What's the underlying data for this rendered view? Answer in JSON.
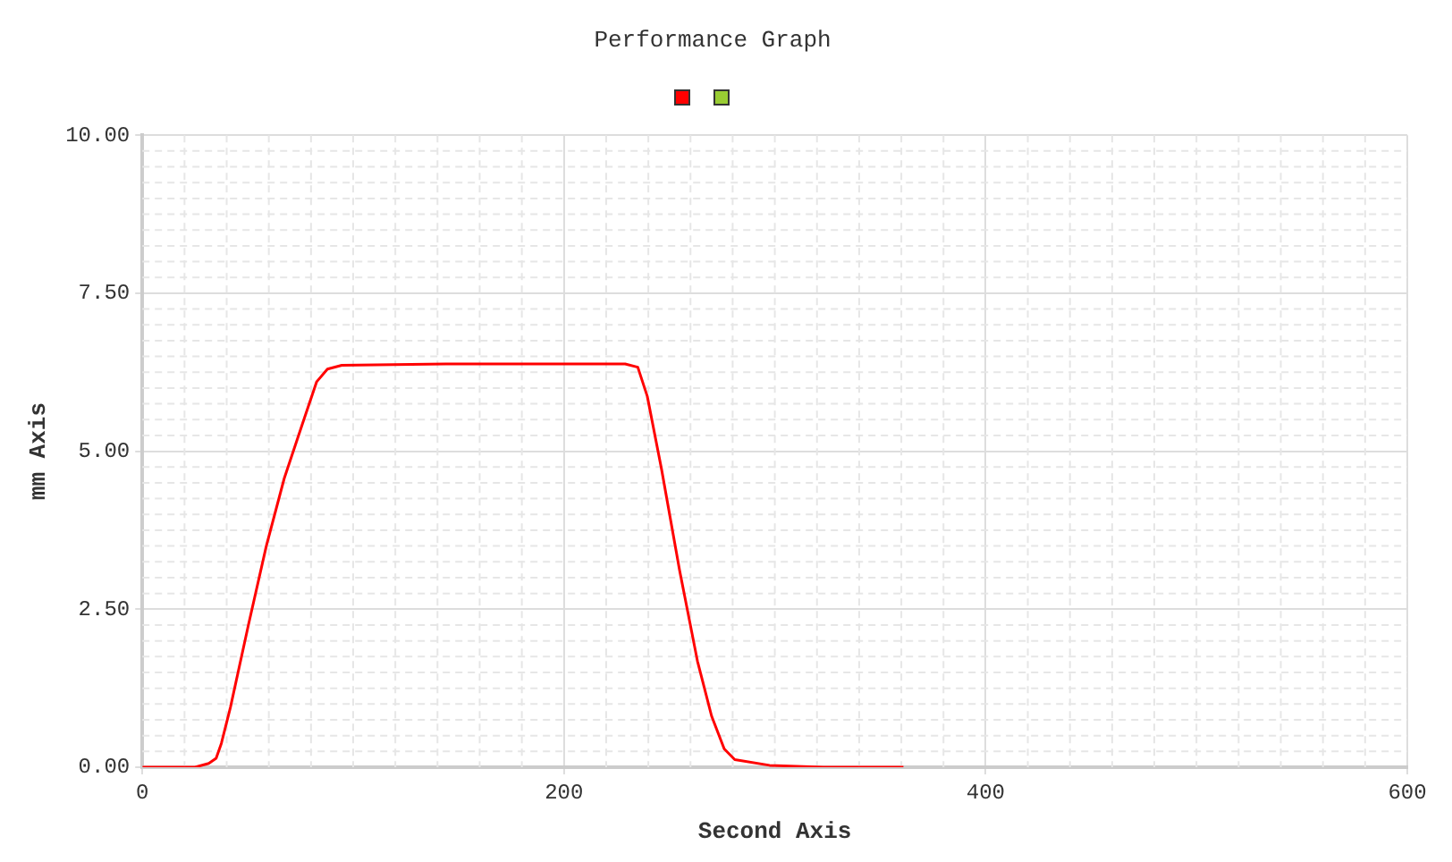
{
  "chart_data": {
    "type": "line",
    "title": "Performance Graph",
    "xlabel": "Second Axis",
    "ylabel": "mm Axis",
    "xlim": [
      0,
      600
    ],
    "xticks": [
      0,
      200,
      400,
      600
    ],
    "ylim": [
      0,
      10
    ],
    "yticks": [
      {
        "value": 0,
        "label": "0.00"
      },
      {
        "value": 2.5,
        "label": "2.50"
      },
      {
        "value": 5,
        "label": "5.00"
      },
      {
        "value": 7.5,
        "label": "7.50"
      },
      {
        "value": 10,
        "label": "10.00"
      }
    ],
    "grid": true,
    "marker": "none",
    "line_style": "solid",
    "series": [
      {
        "color": "#ff0000",
        "x": [
          0,
          25,
          31.5,
          35,
          37.5,
          41.8,
          50.3,
          58.8,
          67.3,
          75.9,
          82.7,
          87.8,
          94.6,
          144,
          229,
          235,
          239.5,
          246.3,
          254.8,
          263.3,
          270,
          276,
          281,
          297.5,
          323,
          361
        ],
        "values": [
          0,
          0,
          0.06,
          0.14,
          0.38,
          0.95,
          2.25,
          3.5,
          4.57,
          5.43,
          6.1,
          6.3,
          6.36,
          6.38,
          6.38,
          6.33,
          5.87,
          4.71,
          3.12,
          1.68,
          0.81,
          0.29,
          0.12,
          0.03,
          0,
          0
        ]
      }
    ]
  }
}
